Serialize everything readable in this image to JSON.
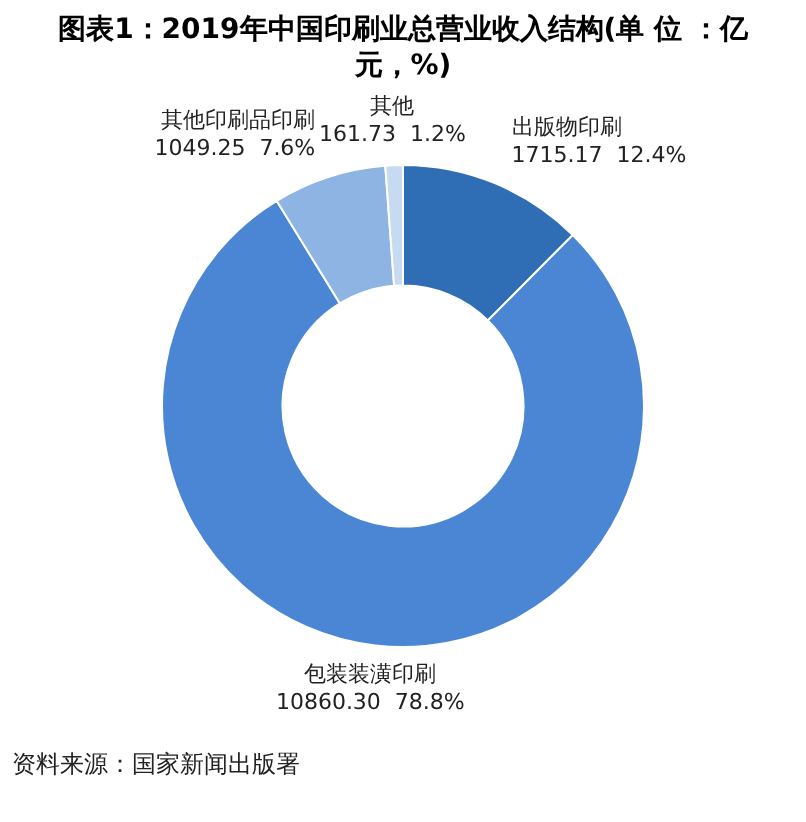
{
  "chart_data": {
    "type": "donut",
    "title": "图表1：2019年中国印刷业总营业收入结构(单 位 ：亿元，%)",
    "categories": [
      "出版物印刷",
      "包装装潢印刷",
      "其他印刷品印刷",
      "其他"
    ],
    "values": [
      1715.17,
      10860.3,
      1049.25,
      161.73
    ],
    "value_labels": [
      "1715.17  12.4%",
      "10860.30  78.8%",
      "1049.25  7.6%",
      "161.73  1.2%"
    ],
    "colors": [
      "#2f6db5",
      "#4a86d3",
      "#8db4e3",
      "#c6daf1"
    ],
    "legend": false,
    "annotations": [
      "资料来源：国家新闻出版署"
    ]
  }
}
